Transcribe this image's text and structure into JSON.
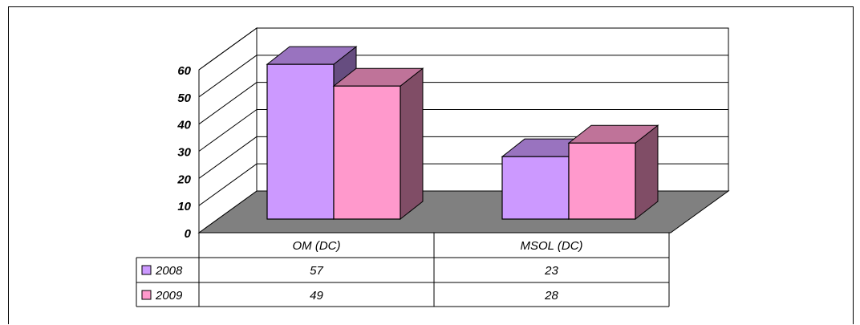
{
  "chart_data": {
    "type": "bar",
    "style": "3d-clustered-column-with-data-table",
    "categories": [
      "OM (DC)",
      "MSOL (DC)"
    ],
    "series": [
      {
        "name": "2008",
        "values": [
          57,
          23
        ],
        "color": "#CC99FF"
      },
      {
        "name": "2009",
        "values": [
          49,
          28
        ],
        "color": "#FF99CC"
      }
    ],
    "ylim": [
      0,
      60
    ],
    "yticks": [
      "0",
      "10",
      "20",
      "30",
      "40",
      "50",
      "60"
    ],
    "grid": true,
    "floor_color": "#808080",
    "legend": "data-table-left"
  }
}
